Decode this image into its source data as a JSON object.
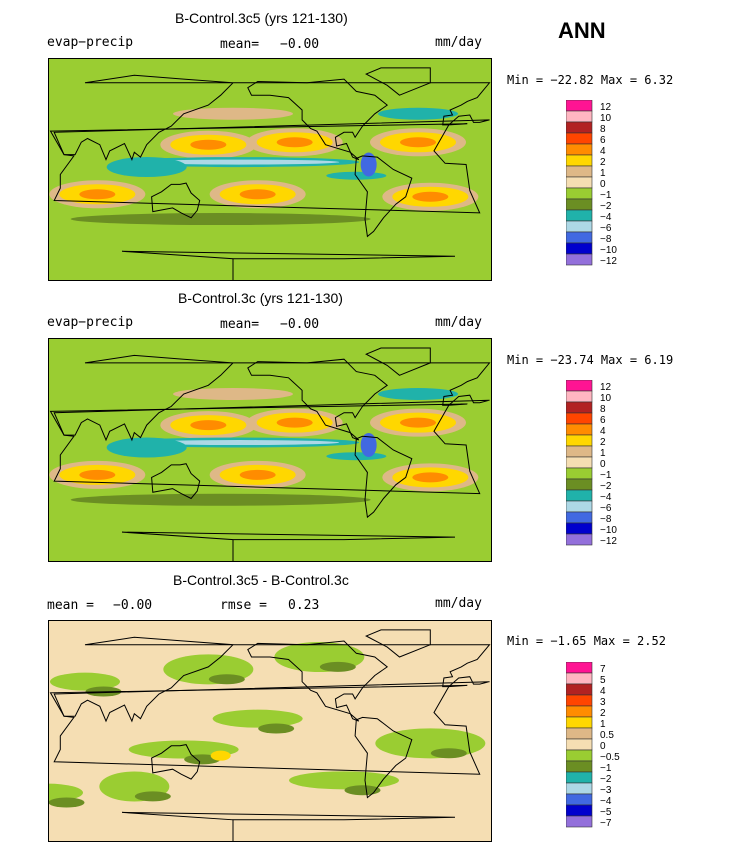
{
  "season": "ANN",
  "panels": [
    {
      "title": "B-Control.3c5 (yrs 121-130)",
      "variable": "evap−precip",
      "stat1_label": "mean=",
      "stat1_value": "−0.00",
      "stat2_label": "",
      "stat2_value": "",
      "units": "mm/day",
      "min_max": "Min = −22.82 Max =     6.32",
      "colorbar": [
        "12",
        "10",
        "8",
        "6",
        "4",
        "2",
        "1",
        "0",
        "−1",
        "−2",
        "−4",
        "−6",
        "−8",
        "−10",
        "−12"
      ],
      "kind": "model"
    },
    {
      "title": "B-Control.3c (yrs 121-130)",
      "variable": "evap−precip",
      "stat1_label": "mean=",
      "stat1_value": "−0.00",
      "stat2_label": "",
      "stat2_value": "",
      "units": "mm/day",
      "min_max": "Min = −23.74 Max =     6.19",
      "colorbar": [
        "12",
        "10",
        "8",
        "6",
        "4",
        "2",
        "1",
        "0",
        "−1",
        "−2",
        "−4",
        "−6",
        "−8",
        "−10",
        "−12"
      ],
      "kind": "model"
    },
    {
      "title": "B-Control.3c5 - B-Control.3c",
      "variable": "",
      "stat1_label": "mean =",
      "stat1_value": "−0.00",
      "stat2_label": "rmse =",
      "stat2_value": "0.23",
      "units": "mm/day",
      "min_max": "Min =  −1.65 Max =     2.52",
      "colorbar": [
        "7",
        "5",
        "4",
        "3",
        "2",
        "1",
        "0.5",
        "0",
        "−0.5",
        "−1",
        "−2",
        "−3",
        "−4",
        "−5",
        "−7"
      ],
      "kind": "diff"
    }
  ],
  "colors": [
    "#ff1493",
    "#ffb6c1",
    "#b22222",
    "#ff4500",
    "#ff8c00",
    "#ffd700",
    "#deb887",
    "#f5deb3",
    "#9acd32",
    "#6b8e23",
    "#20b2aa",
    "#add8e6",
    "#4169e1",
    "#0000cd",
    "#9370db"
  ],
  "chart_data": [
    {
      "type": "heatmap",
      "title": "B-Control.3c5 (yrs 121-130)",
      "variable": "evap-precip",
      "units": "mm/day",
      "mean": -0.0,
      "min": -22.82,
      "max": 6.32,
      "levels": [
        12,
        10,
        8,
        6,
        4,
        2,
        1,
        0,
        -1,
        -2,
        -4,
        -6,
        -8,
        -10,
        -12
      ]
    },
    {
      "type": "heatmap",
      "title": "B-Control.3c (yrs 121-130)",
      "variable": "evap-precip",
      "units": "mm/day",
      "mean": -0.0,
      "min": -23.74,
      "max": 6.19,
      "levels": [
        12,
        10,
        8,
        6,
        4,
        2,
        1,
        0,
        -1,
        -2,
        -4,
        -6,
        -8,
        -10,
        -12
      ]
    },
    {
      "type": "heatmap",
      "title": "B-Control.3c5 - B-Control.3c",
      "units": "mm/day",
      "mean": -0.0,
      "rmse": 0.23,
      "min": -1.65,
      "max": 2.52,
      "levels": [
        7,
        5,
        4,
        3,
        2,
        1,
        0.5,
        0,
        -0.5,
        -1,
        -2,
        -3,
        -4,
        -5,
        -7
      ]
    }
  ]
}
